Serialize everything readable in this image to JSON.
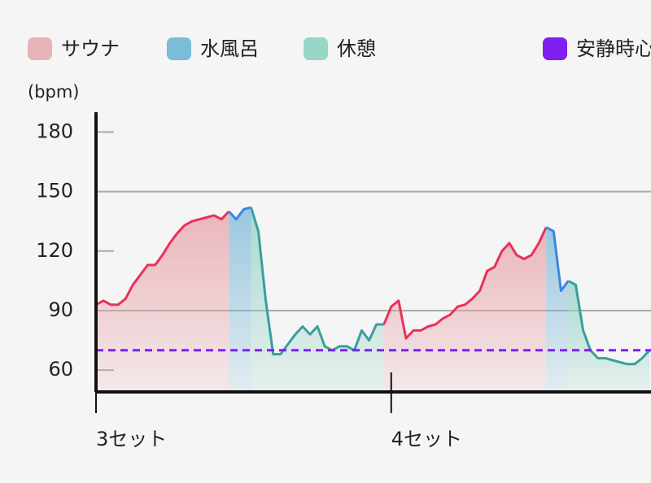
{
  "chart_data": {
    "type": "line",
    "y_label": "(bpm)",
    "x": [
      3.0,
      3.025,
      3.05,
      3.075,
      3.1,
      3.125,
      3.15,
      3.175,
      3.2,
      3.225,
      3.25,
      3.275,
      3.3,
      3.325,
      3.35,
      3.375,
      3.4,
      3.425,
      3.45,
      3.475,
      3.5,
      3.525,
      3.55,
      3.575,
      3.6,
      3.625,
      3.65,
      3.675,
      3.7,
      3.725,
      3.75,
      3.775,
      3.8,
      3.825,
      3.85,
      3.875,
      3.9,
      3.925,
      3.95,
      3.975,
      4.0,
      4.025,
      4.05,
      4.075,
      4.1,
      4.125,
      4.15,
      4.175,
      4.2,
      4.225,
      4.25,
      4.275,
      4.3,
      4.325,
      4.35,
      4.375,
      4.4,
      4.425,
      4.45,
      4.475,
      4.5,
      4.525,
      4.55,
      4.575,
      4.6,
      4.625,
      4.65,
      4.675,
      4.7,
      4.725,
      4.75,
      4.775,
      4.8,
      4.825,
      4.85,
      4.875
    ],
    "series": [
      {
        "name": "サウナ",
        "color": "#e8325a",
        "fill": "#e8a0a8",
        "legend_color": "#e8b4b8",
        "values": [
          93,
          95,
          93,
          93,
          96,
          103,
          108,
          113,
          113,
          118,
          124,
          129,
          133,
          135,
          136,
          137,
          138,
          136,
          140,
          null,
          null,
          null,
          null,
          null,
          null,
          null,
          null,
          null,
          null,
          null,
          null,
          null,
          null,
          null,
          null,
          null,
          null,
          null,
          null,
          83,
          92,
          95,
          76,
          80,
          80,
          82,
          83,
          86,
          88,
          92,
          93,
          96,
          100,
          110,
          112,
          120,
          124,
          118,
          116,
          118,
          124,
          132,
          null,
          null,
          null,
          null,
          null,
          null,
          null,
          null,
          null,
          null,
          null,
          null,
          null,
          null
        ]
      },
      {
        "name": "水風呂",
        "color": "#3d85e0",
        "fill": "#7ab8d8",
        "legend_color": "#7bbcd8",
        "values": [
          null,
          null,
          null,
          null,
          null,
          null,
          null,
          null,
          null,
          null,
          null,
          null,
          null,
          null,
          null,
          null,
          null,
          null,
          140,
          136,
          141,
          142,
          null,
          null,
          null,
          null,
          null,
          null,
          null,
          null,
          null,
          null,
          null,
          null,
          null,
          null,
          null,
          null,
          null,
          null,
          null,
          null,
          null,
          null,
          null,
          null,
          null,
          null,
          null,
          null,
          null,
          null,
          null,
          null,
          null,
          null,
          null,
          null,
          null,
          null,
          null,
          132,
          130,
          100,
          105,
          null,
          null,
          null,
          null,
          null,
          null,
          null,
          null,
          null,
          null,
          null
        ]
      },
      {
        "name": "休憩",
        "color": "#3a9e9e",
        "fill": "#90d0c4",
        "legend_color": "#98d6c8",
        "values": [
          null,
          null,
          null,
          null,
          null,
          null,
          null,
          null,
          null,
          null,
          null,
          null,
          null,
          null,
          null,
          null,
          null,
          null,
          null,
          null,
          null,
          142,
          130,
          95,
          68,
          68,
          73,
          78,
          82,
          78,
          82,
          72,
          70,
          72,
          72,
          70,
          80,
          75,
          83,
          83,
          null,
          null,
          null,
          null,
          null,
          null,
          null,
          null,
          null,
          null,
          null,
          null,
          null,
          null,
          null,
          null,
          null,
          null,
          null,
          null,
          null,
          null,
          null,
          null,
          105,
          103,
          80,
          70,
          66,
          66,
          65,
          64,
          63,
          63,
          66,
          70
        ]
      }
    ],
    "resting": {
      "name": "安静時心拍",
      "value": 70,
      "color": "#7f1ff0"
    },
    "xlim": [
      3,
      4.88
    ],
    "xticks": [
      {
        "value": 3,
        "label": "3セット"
      },
      {
        "value": 4,
        "label": "4セット"
      }
    ],
    "ylim": [
      49,
      190
    ],
    "yticks": [
      60,
      90,
      120,
      150,
      180
    ]
  }
}
